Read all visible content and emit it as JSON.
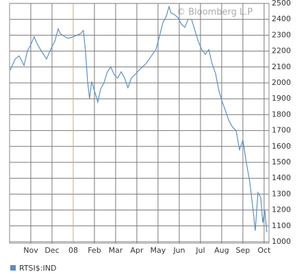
{
  "chart_data": {
    "type": "line",
    "watermark": "© Bloomberg L.P",
    "x": [
      0.03,
      0.26,
      0.45,
      0.68,
      0.84,
      1,
      1.16,
      1.32,
      1.55,
      1.74,
      1.97,
      2.13,
      2.29,
      2.39,
      2.61,
      2.77,
      3,
      3.16,
      3.35,
      3.48,
      3.58,
      3.68,
      3.77,
      3.87,
      4,
      4.16,
      4.29,
      4.45,
      4.61,
      4.77,
      4.94,
      5.1,
      5.26,
      5.42,
      5.58,
      5.74,
      5.9,
      6.1,
      6.26,
      6.42,
      6.58,
      6.74,
      6.9,
      7.06,
      7.23,
      7.39,
      7.52,
      7.61,
      7.77,
      7.94,
      8.1,
      8.26,
      8.42,
      8.58,
      8.74,
      8.9,
      9.06,
      9.23,
      9.39,
      9.55,
      9.71,
      9.87,
      10.03,
      10.19,
      10.35,
      10.52,
      10.68,
      10.84,
      11,
      11.16,
      11.32,
      11.48,
      11.58,
      11.71,
      11.84,
      11.94,
      12.03,
      12.13
    ],
    "series": [
      {
        "name": "RTSI$:IND",
        "color": "#5b8fc4",
        "values": [
          2080,
          2150,
          2170,
          2110,
          2200,
          2240,
          2290,
          2240,
          2190,
          2150,
          2220,
          2260,
          2340,
          2310,
          2290,
          2280,
          2290,
          2300,
          2310,
          2330,
          2200,
          2010,
          1900,
          2010,
          1950,
          1880,
          1960,
          2000,
          2070,
          2100,
          2050,
          2030,
          2070,
          2030,
          1970,
          2030,
          2050,
          2080,
          2100,
          2120,
          2150,
          2180,
          2210,
          2290,
          2380,
          2420,
          2480,
          2440,
          2430,
          2410,
          2370,
          2350,
          2400,
          2400,
          2330,
          2260,
          2210,
          2180,
          2210,
          2120,
          2060,
          1950,
          1880,
          1820,
          1760,
          1720,
          1700,
          1580,
          1640,
          1500,
          1380,
          1200,
          1070,
          1310,
          1280,
          1120,
          1200,
          1060
        ]
      }
    ],
    "xlim": [
      0,
      12.23
    ],
    "xticks": [
      {
        "value": 1,
        "label": "Nov"
      },
      {
        "value": 2,
        "label": "Dec"
      },
      {
        "value": 3,
        "label": "08"
      },
      {
        "value": 4,
        "label": "Feb"
      },
      {
        "value": 5,
        "label": "Mar"
      },
      {
        "value": 6,
        "label": "Apr"
      },
      {
        "value": 7,
        "label": "May"
      },
      {
        "value": 8,
        "label": "Jun"
      },
      {
        "value": 9,
        "label": "Jul"
      },
      {
        "value": 10,
        "label": "Aug"
      },
      {
        "value": 11,
        "label": "Sep"
      },
      {
        "value": 12,
        "label": "Oct"
      }
    ],
    "ylim": [
      1000,
      2500
    ],
    "yticks": [
      1000,
      1100,
      1200,
      1300,
      1400,
      1500,
      1600,
      1700,
      1800,
      1900,
      2000,
      2100,
      2200,
      2300,
      2400,
      2500
    ],
    "grid": true
  }
}
